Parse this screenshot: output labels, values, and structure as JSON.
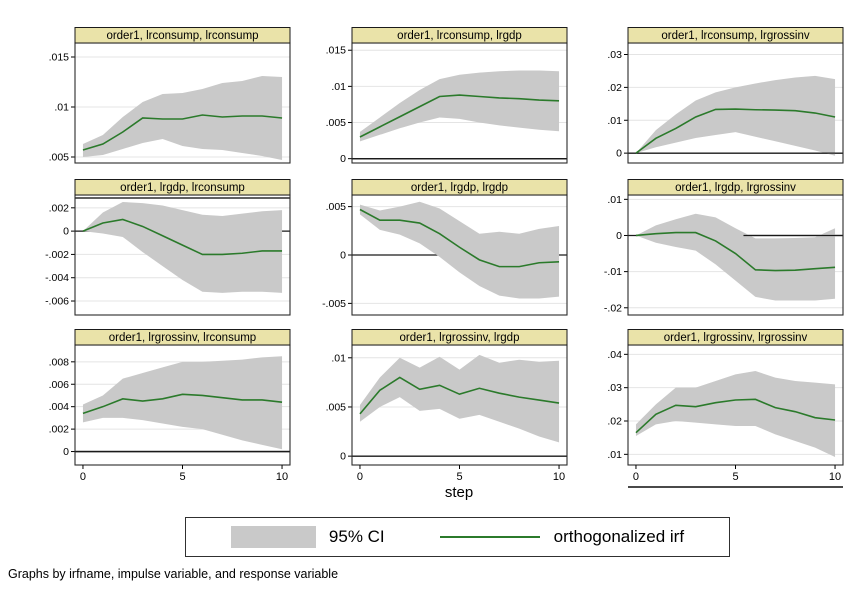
{
  "figure": {
    "xlabel": "step",
    "caption": "Graphs by irfname, impulse variable, and response variable",
    "legend": {
      "ci_label": "95% CI",
      "irf_label": "orthogonalized irf"
    },
    "colors": {
      "band": "#c9c9c9",
      "irf_line": "#2b7a2b",
      "title_bg": "#eae3a9",
      "title_border": "#1a1a1a",
      "plot_border": "#2b2b2b",
      "grid": "#e4e4e4",
      "zero_line": "#1a1a1a",
      "text": "#000000"
    }
  },
  "chart_data": {
    "type": "area",
    "description": "3x3 grid of orthogonalized impulse-response functions with 95% CI bands",
    "x": [
      0,
      1,
      2,
      3,
      4,
      5,
      6,
      7,
      8,
      9,
      10
    ],
    "xticks": [
      0,
      5,
      10
    ],
    "xtick_labels": [
      "0",
      "5",
      "10"
    ],
    "panels": [
      {
        "title": "order1, lrconsump, lrconsump",
        "ylim": [
          0.0044,
          0.0164
        ],
        "ytick_values": [
          0.005,
          0.01,
          0.015
        ],
        "ytick_labels": [
          ".005",
          ".01",
          ".015"
        ],
        "irf": [
          0.0057,
          0.0063,
          0.0075,
          0.0089,
          0.0088,
          0.0088,
          0.0092,
          0.009,
          0.0091,
          0.0091,
          0.0089
        ],
        "lower": [
          0.005,
          0.0052,
          0.0058,
          0.0064,
          0.0068,
          0.0061,
          0.0058,
          0.0057,
          0.0054,
          0.0051,
          0.0047
        ],
        "upper": [
          0.0063,
          0.0072,
          0.009,
          0.0105,
          0.0113,
          0.0114,
          0.0118,
          0.0124,
          0.0126,
          0.0131,
          0.013
        ],
        "zero_line": "none"
      },
      {
        "title": "order1, lrconsump, lrgdp",
        "ylim": [
          -0.0006,
          0.016
        ],
        "ytick_values": [
          0,
          0.005,
          0.01,
          0.015
        ],
        "ytick_labels": [
          "0",
          ".005",
          ".01",
          ".015"
        ],
        "irf": [
          0.003,
          0.0044,
          0.0058,
          0.0072,
          0.0086,
          0.0088,
          0.0086,
          0.0084,
          0.0083,
          0.0081,
          0.008
        ],
        "lower": [
          0.0024,
          0.0033,
          0.0042,
          0.005,
          0.0057,
          0.0055,
          0.005,
          0.0046,
          0.0043,
          0.004,
          0.0038
        ],
        "upper": [
          0.0037,
          0.0057,
          0.0077,
          0.0095,
          0.011,
          0.0116,
          0.0119,
          0.0121,
          0.0122,
          0.0122,
          0.0121
        ],
        "zero_line": "over"
      },
      {
        "title": "order1, lrconsump, lrgrossinv",
        "ylim": [
          -0.003,
          0.0335
        ],
        "ytick_values": [
          0,
          0.01,
          0.02,
          0.03
        ],
        "ytick_labels": [
          "0",
          ".01",
          ".02",
          ".03"
        ],
        "irf": [
          0,
          0.0045,
          0.0075,
          0.011,
          0.0133,
          0.0134,
          0.0132,
          0.0131,
          0.0129,
          0.0122,
          0.011
        ],
        "lower": [
          0,
          0.0018,
          0.0032,
          0.0046,
          0.0055,
          0.0064,
          0.005,
          0.0036,
          0.0022,
          0.0008,
          -0.0008
        ],
        "upper": [
          0,
          0.007,
          0.0118,
          0.016,
          0.0185,
          0.02,
          0.0212,
          0.0222,
          0.023,
          0.0235,
          0.0225
        ],
        "zero_line": "over"
      },
      {
        "title": "order1, lrgdp, lrconsump",
        "ylim": [
          -0.0072,
          0.0031
        ],
        "ytick_values": [
          0.002,
          0,
          -0.002,
          -0.004,
          -0.006
        ],
        "ytick_labels": [
          ".002",
          "0",
          "-.002",
          "-.004",
          "-.006"
        ],
        "irf": [
          0,
          0.0007,
          0.001,
          0.0004,
          -0.0004,
          -0.0012,
          -0.002,
          -0.002,
          -0.0019,
          -0.0017,
          -0.0017
        ],
        "lower": [
          0,
          -0.0002,
          -0.0005,
          -0.0018,
          -0.003,
          -0.0042,
          -0.0052,
          -0.0053,
          -0.0052,
          -0.0052,
          -0.0053
        ],
        "upper": [
          0,
          0.0016,
          0.0025,
          0.0024,
          0.0022,
          0.0018,
          0.0014,
          0.0013,
          0.0015,
          0.0017,
          0.0018
        ],
        "zero_line": "under",
        "top_line": true
      },
      {
        "title": "order1, lrgdp, lrgdp",
        "ylim": [
          -0.0062,
          0.0062
        ],
        "ytick_values": [
          0.005,
          0,
          -0.005
        ],
        "ytick_labels": [
          ".005",
          "0",
          "-.005"
        ],
        "irf": [
          0.0047,
          0.0036,
          0.0036,
          0.0033,
          0.0022,
          0.0008,
          -0.0005,
          -0.0012,
          -0.0012,
          -0.0008,
          -0.0007
        ],
        "lower": [
          0.0042,
          0.0026,
          0.0021,
          0.0012,
          -0.0002,
          -0.0018,
          -0.0032,
          -0.0042,
          -0.0045,
          -0.0045,
          -0.0043
        ],
        "upper": [
          0.0052,
          0.0046,
          0.005,
          0.0055,
          0.0048,
          0.0035,
          0.0022,
          0.0024,
          0.0022,
          0.0027,
          0.003
        ],
        "zero_line": "under"
      },
      {
        "title": "order1, lrgdp, lrgrossinv",
        "ylim": [
          -0.022,
          0.0112
        ],
        "ytick_values": [
          0.01,
          0,
          -0.01,
          -0.02
        ],
        "ytick_labels": [
          ".01",
          "0",
          "-.01",
          "-.02"
        ],
        "irf": [
          0,
          0.0005,
          0.0008,
          0.0008,
          -0.0015,
          -0.005,
          -0.0095,
          -0.0097,
          -0.0096,
          -0.0092,
          -0.0088
        ],
        "lower": [
          0,
          -0.002,
          -0.0032,
          -0.0042,
          -0.008,
          -0.0125,
          -0.017,
          -0.018,
          -0.018,
          -0.018,
          -0.0175
        ],
        "upper": [
          0,
          0.0028,
          0.0045,
          0.006,
          0.005,
          0.002,
          -0.0008,
          -0.0008,
          -0.0007,
          -0.0005,
          0.002
        ],
        "zero_line": "under",
        "zero_over_from": 5.4
      },
      {
        "title": "order1, lrgrossinv, lrconsump",
        "ylim": [
          -0.0012,
          0.0095
        ],
        "ytick_values": [
          0,
          0.002,
          0.004,
          0.006,
          0.008
        ],
        "ytick_labels": [
          "0",
          ".002",
          ".004",
          ".006",
          ".008"
        ],
        "irf": [
          0.0034,
          0.004,
          0.0047,
          0.0045,
          0.0047,
          0.0051,
          0.005,
          0.0048,
          0.0046,
          0.0046,
          0.0044
        ],
        "lower": [
          0.0026,
          0.003,
          0.003,
          0.0028,
          0.0025,
          0.0022,
          0.002,
          0.0015,
          0.001,
          0.0006,
          0.0002
        ],
        "upper": [
          0.0042,
          0.005,
          0.0065,
          0.007,
          0.0075,
          0.008,
          0.008,
          0.0081,
          0.0082,
          0.0084,
          0.0085
        ],
        "zero_line": "over"
      },
      {
        "title": "order1, lrgrossinv, lrgdp",
        "ylim": [
          -0.0009,
          0.0113
        ],
        "ytick_values": [
          0,
          0.005,
          0.01
        ],
        "ytick_labels": [
          "0",
          ".005",
          ".01"
        ],
        "irf": [
          0.0043,
          0.0067,
          0.008,
          0.0068,
          0.0072,
          0.0063,
          0.0069,
          0.0064,
          0.006,
          0.0057,
          0.0054
        ],
        "lower": [
          0.0035,
          0.005,
          0.006,
          0.0046,
          0.0048,
          0.0038,
          0.0042,
          0.0035,
          0.0028,
          0.002,
          0.0014
        ],
        "upper": [
          0.0052,
          0.008,
          0.01,
          0.009,
          0.0101,
          0.0088,
          0.0103,
          0.0095,
          0.0098,
          0.0096,
          0.0097
        ],
        "zero_line": "over"
      },
      {
        "title": "order1, lrgrossinv, lrgrossinv",
        "ylim": [
          0.0068,
          0.0428
        ],
        "ytick_values": [
          0.01,
          0.02,
          0.03,
          0.04
        ],
        "ytick_labels": [
          ".01",
          ".02",
          ".03",
          ".04"
        ],
        "irf": [
          0.0165,
          0.022,
          0.0247,
          0.0243,
          0.0255,
          0.0263,
          0.0265,
          0.024,
          0.0228,
          0.021,
          0.0203
        ],
        "lower": [
          0.0155,
          0.019,
          0.02,
          0.0195,
          0.019,
          0.0185,
          0.0185,
          0.016,
          0.014,
          0.012,
          0.0092
        ],
        "upper": [
          0.019,
          0.025,
          0.03,
          0.03,
          0.032,
          0.034,
          0.035,
          0.033,
          0.032,
          0.0315,
          0.031
        ],
        "zero_line": "none",
        "bottom_line": true
      }
    ]
  }
}
